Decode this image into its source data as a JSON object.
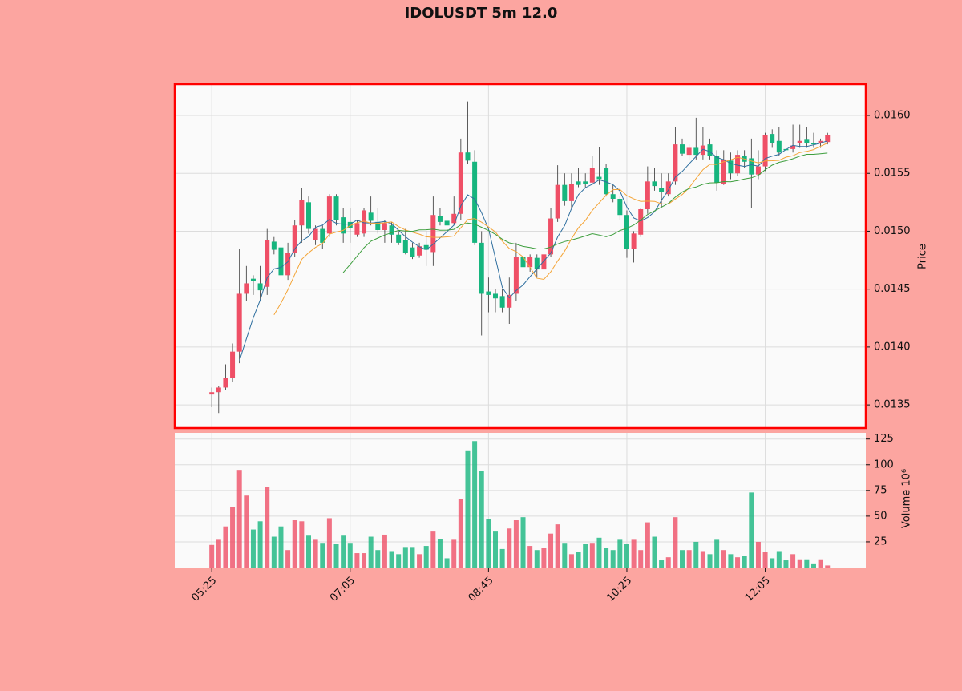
{
  "chart_data": {
    "type": "candlestick",
    "title": "IDOLUSDT 5m 12.0",
    "y_label": "Price",
    "y2_label": "Volume  10⁶",
    "x": [
      "05:25",
      null,
      null,
      null,
      null,
      null,
      null,
      null,
      null,
      null,
      null,
      null,
      null,
      null,
      null,
      null,
      null,
      null,
      null,
      null,
      "07:05",
      null,
      null,
      null,
      null,
      null,
      null,
      null,
      null,
      null,
      null,
      null,
      null,
      null,
      null,
      null,
      null,
      null,
      null,
      null,
      "08:45",
      null,
      null,
      null,
      null,
      null,
      null,
      null,
      null,
      null,
      null,
      null,
      null,
      null,
      null,
      null,
      null,
      null,
      null,
      null,
      "10:25",
      null,
      null,
      null,
      null,
      null,
      null,
      null,
      null,
      null,
      null,
      null,
      null,
      null,
      null,
      null,
      null,
      null,
      null,
      null,
      "12:05",
      null,
      null,
      null,
      null,
      null,
      null,
      null,
      null,
      null
    ],
    "open": [
      0.01359,
      0.01361,
      0.01365,
      0.01373,
      0.01396,
      0.01446,
      0.01459,
      0.01455,
      0.01452,
      0.01491,
      0.01486,
      0.01462,
      0.01481,
      0.01505,
      0.01525,
      0.01492,
      0.01502,
      0.01498,
      0.0153,
      0.01512,
      0.01508,
      0.01497,
      0.01498,
      0.01516,
      0.01508,
      0.01501,
      0.01505,
      0.01497,
      0.01492,
      0.01486,
      0.01479,
      0.01488,
      0.01482,
      0.01513,
      0.01509,
      0.01507,
      0.01515,
      0.01568,
      0.0156,
      0.0149,
      0.01448,
      0.01446,
      0.01444,
      0.01434,
      0.01446,
      0.01478,
      0.01469,
      0.01477,
      0.01467,
      0.0148,
      0.01511,
      0.0154,
      0.01526,
      0.01543,
      0.01543,
      0.01542,
      0.01547,
      0.01555,
      0.01532,
      0.01528,
      0.01514,
      0.01485,
      0.01497,
      0.01519,
      0.01543,
      0.01537,
      0.01532,
      0.01543,
      0.01575,
      0.01566,
      0.01572,
      0.01566,
      0.01575,
      0.01565,
      0.01541,
      0.01561,
      0.0155,
      0.01565,
      0.01563,
      0.01549,
      0.01556,
      0.01584,
      0.01578,
      0.01571,
      0.01571,
      0.01576,
      0.01579,
      0.01576,
      0.01576,
      0.01577
    ],
    "high": [
      0.01365,
      0.01366,
      0.01385,
      0.01403,
      0.01485,
      0.0147,
      0.01462,
      0.0147,
      0.01502,
      0.01495,
      0.0149,
      0.0149,
      0.0151,
      0.01537,
      0.0153,
      0.01505,
      0.01505,
      0.01532,
      0.01532,
      0.0152,
      0.0152,
      0.0151,
      0.0152,
      0.0153,
      0.0152,
      0.0151,
      0.01508,
      0.015,
      0.01502,
      0.0149,
      0.0149,
      0.015,
      0.0153,
      0.0152,
      0.01512,
      0.0153,
      0.0158,
      0.01612,
      0.0157,
      0.015,
      0.0146,
      0.0145,
      0.0145,
      0.0146,
      0.0149,
      0.015,
      0.0148,
      0.0148,
      0.0149,
      0.0152,
      0.01557,
      0.0155,
      0.0155,
      0.01555,
      0.0155,
      0.01565,
      0.01573,
      0.01558,
      0.0154,
      0.0153,
      0.01518,
      0.015,
      0.0152,
      0.01556,
      0.01555,
      0.0155,
      0.0155,
      0.0159,
      0.0158,
      0.01575,
      0.01598,
      0.0159,
      0.0158,
      0.0157,
      0.0157,
      0.01568,
      0.0157,
      0.0157,
      0.0158,
      0.0157,
      0.01585,
      0.01588,
      0.0159,
      0.0158,
      0.01592,
      0.01592,
      0.0159,
      0.01585,
      0.0158,
      0.01585
    ],
    "low": [
      0.01348,
      0.01343,
      0.01363,
      0.0137,
      0.01386,
      0.0144,
      0.01445,
      0.0144,
      0.01445,
      0.0148,
      0.01458,
      0.01458,
      0.01478,
      0.0149,
      0.01498,
      0.01488,
      0.01485,
      0.01495,
      0.01505,
      0.0149,
      0.0149,
      0.01495,
      0.01495,
      0.01505,
      0.01498,
      0.0149,
      0.0149,
      0.01488,
      0.0148,
      0.01476,
      0.01477,
      0.0147,
      0.0147,
      0.01505,
      0.015,
      0.01505,
      0.0151,
      0.01558,
      0.01488,
      0.0141,
      0.0143,
      0.0143,
      0.0143,
      0.0142,
      0.0144,
      0.01465,
      0.01465,
      0.0146,
      0.01465,
      0.01478,
      0.01508,
      0.01522,
      0.0152,
      0.01538,
      0.01538,
      0.0154,
      0.0154,
      0.0153,
      0.01525,
      0.0151,
      0.01477,
      0.01473,
      0.01495,
      0.01515,
      0.01535,
      0.0152,
      0.0153,
      0.0154,
      0.01565,
      0.01562,
      0.01562,
      0.01562,
      0.01562,
      0.01535,
      0.0154,
      0.01545,
      0.01548,
      0.01555,
      0.0152,
      0.01545,
      0.01552,
      0.01572,
      0.01565,
      0.01565,
      0.01568,
      0.01572,
      0.01572,
      0.01572,
      0.01572,
      0.01575
    ],
    "close": [
      0.01361,
      0.01365,
      0.01373,
      0.01396,
      0.01446,
      0.01455,
      0.01457,
      0.01449,
      0.01492,
      0.01484,
      0.01462,
      0.01481,
      0.01505,
      0.01527,
      0.01502,
      0.01502,
      0.0149,
      0.0153,
      0.0151,
      0.01498,
      0.01503,
      0.01507,
      0.01518,
      0.01509,
      0.01501,
      0.01507,
      0.01497,
      0.0149,
      0.01481,
      0.01478,
      0.01487,
      0.01484,
      0.01514,
      0.01508,
      0.01505,
      0.01515,
      0.01568,
      0.01561,
      0.0149,
      0.01446,
      0.01445,
      0.01442,
      0.01434,
      0.01445,
      0.01478,
      0.01469,
      0.01478,
      0.01467,
      0.0148,
      0.01511,
      0.0154,
      0.01526,
      0.01541,
      0.0154,
      0.01541,
      0.01555,
      0.01545,
      0.01532,
      0.01528,
      0.01514,
      0.01485,
      0.01498,
      0.01519,
      0.01543,
      0.01539,
      0.01534,
      0.01543,
      0.01575,
      0.01567,
      0.01572,
      0.01566,
      0.01574,
      0.01565,
      0.01542,
      0.01562,
      0.0155,
      0.01566,
      0.0156,
      0.01549,
      0.01556,
      0.01583,
      0.01576,
      0.01568,
      0.0157,
      0.01574,
      0.01578,
      0.01576,
      0.01575,
      0.01578,
      0.01583
    ],
    "volume": [
      22,
      27,
      40,
      59,
      95,
      70,
      37,
      45,
      78,
      30,
      40,
      17,
      46,
      45,
      31,
      27,
      24,
      48,
      23,
      31,
      24,
      14,
      14,
      30,
      17,
      32,
      16,
      13,
      20,
      20,
      13,
      21,
      35,
      28,
      9,
      27,
      67,
      114,
      123,
      94,
      47,
      35,
      18,
      38,
      46,
      49,
      21,
      17,
      19,
      33,
      42,
      24,
      13,
      15,
      23,
      24,
      29,
      19,
      17,
      27,
      23,
      27,
      17,
      44,
      30,
      7,
      10,
      49,
      17,
      17,
      25,
      16,
      13,
      27,
      17,
      13,
      10,
      11,
      73,
      25,
      15,
      9,
      16,
      7,
      13,
      8,
      8,
      4,
      8,
      2
    ],
    "up_color": "#ef4f66",
    "down_color": "#16b57e",
    "mav": [
      5,
      10,
      20
    ],
    "mav_colors": [
      "#2f6f9f",
      "#f4a436",
      "#3d9e3d"
    ],
    "ylim": [
      0.0133,
      0.01627
    ],
    "yticks": [
      0.0135,
      {
        "value": 0.014,
        "label": "0.0140"
      },
      0.0145,
      {
        "value": 0.015,
        "label": "0.0150"
      },
      0.0155,
      {
        "value": 0.016,
        "label": "0.0160"
      }
    ],
    "y2lim": [
      0,
      131
    ],
    "y2ticks": [
      25,
      50,
      75,
      100,
      125
    ],
    "grid": true
  }
}
